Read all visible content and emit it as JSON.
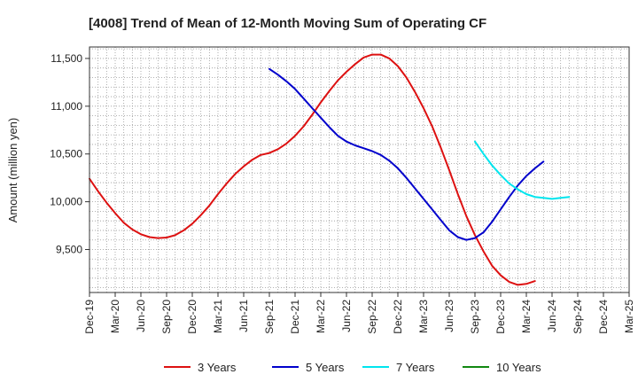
{
  "chart_data": {
    "type": "line",
    "title": "[4008]  Trend of Mean of 12-Month Moving Sum of Operating CF",
    "ylabel": "Amount (million yen)",
    "xlabel": "",
    "ylim": [
      9050,
      11620
    ],
    "yticks": [
      9500,
      10000,
      10500,
      11000,
      11500
    ],
    "ytick_labels": [
      "9,500",
      "10,000",
      "10,500",
      "11,000",
      "11,500"
    ],
    "x_categories": [
      "Dec-19",
      "Mar-20",
      "Jun-20",
      "Sep-20",
      "Dec-20",
      "Mar-21",
      "Jun-21",
      "Sep-21",
      "Dec-21",
      "Mar-22",
      "Jun-22",
      "Sep-22",
      "Dec-22",
      "Mar-23",
      "Jun-23",
      "Sep-23",
      "Dec-23",
      "Mar-24",
      "Jun-24",
      "Sep-24",
      "Dec-24",
      "Mar-25"
    ],
    "grid": true,
    "legend_position": "bottom",
    "series": [
      {
        "name": "3 Years",
        "color": "#dd1111",
        "start_index": 0,
        "values": [
          10240,
          10110,
          9990,
          9880,
          9780,
          9710,
          9660,
          9630,
          9620,
          9625,
          9650,
          9700,
          9770,
          9860,
          9960,
          10080,
          10190,
          10290,
          10370,
          10440,
          10490,
          10510,
          10550,
          10610,
          10690,
          10790,
          10910,
          11040,
          11160,
          11270,
          11360,
          11440,
          11510,
          11540,
          11540,
          11500,
          11420,
          11300,
          11150,
          10980,
          10790,
          10570,
          10330,
          10080,
          9850,
          9650,
          9480,
          9330,
          9230,
          9160,
          9130,
          9140,
          9170
        ]
      },
      {
        "name": "5 Years",
        "color": "#0000cc",
        "start_index": 21,
        "values": [
          11390,
          11330,
          11260,
          11180,
          11080,
          10980,
          10880,
          10780,
          10690,
          10630,
          10590,
          10560,
          10530,
          10490,
          10430,
          10350,
          10250,
          10140,
          10030,
          9920,
          9810,
          9700,
          9630,
          9600,
          9620,
          9680,
          9790,
          9920,
          10050,
          10170,
          10270,
          10350,
          10420
        ]
      },
      {
        "name": "7 Years",
        "color": "#00e5ee",
        "start_index": 45,
        "values": [
          10630,
          10500,
          10380,
          10280,
          10190,
          10130,
          10080,
          10050,
          10040,
          10030,
          10040,
          10050
        ]
      },
      {
        "name": "10 Years",
        "color": "#118811",
        "start_index": 0,
        "values": []
      }
    ]
  }
}
